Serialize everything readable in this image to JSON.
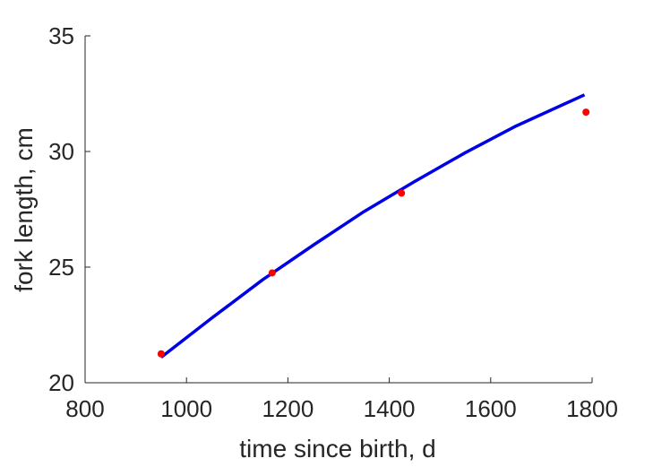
{
  "chart_data": {
    "type": "scatter",
    "xlabel": "time since birth, d",
    "ylabel": "fork length, cm",
    "xlim": [
      800,
      1800
    ],
    "ylim": [
      20,
      35
    ],
    "xticks": [
      800,
      1000,
      1200,
      1400,
      1600,
      1800
    ],
    "yticks": [
      20,
      25,
      30,
      35
    ],
    "grid": false,
    "series": [
      {
        "kind": "scatter",
        "color": "#ff0000",
        "x": [
          950,
          1169,
          1424,
          1788
        ],
        "y": [
          21.25,
          24.75,
          28.2,
          31.7
        ]
      },
      {
        "kind": "line",
        "color": "#0000e6",
        "x": [
          950,
          1050,
          1150,
          1250,
          1350,
          1450,
          1550,
          1650,
          1785
        ],
        "y": [
          21.1,
          22.8,
          24.45,
          25.95,
          27.4,
          28.7,
          29.95,
          31.1,
          32.45
        ]
      }
    ]
  }
}
